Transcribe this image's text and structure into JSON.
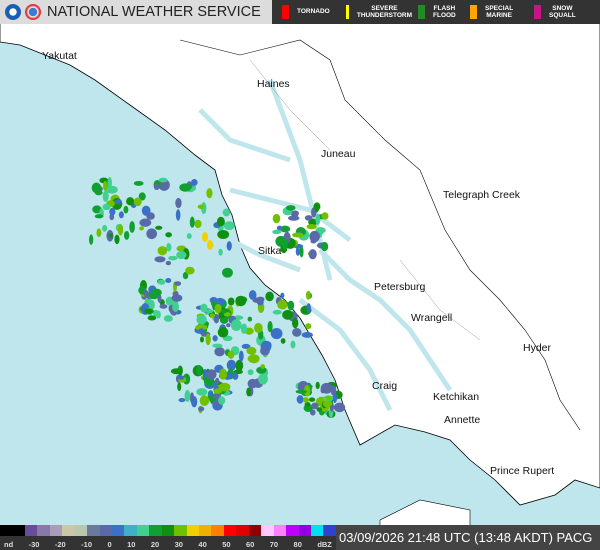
{
  "header": {
    "title": "NATIONAL WEATHER SERVICE",
    "logos": [
      "noaa-logo",
      "nws-logo"
    ]
  },
  "warnings": [
    {
      "label": "TORNADO",
      "color": "#ff0000"
    },
    {
      "label": "SEVERE\nTHUNDERSTORM",
      "color": "#ffff00"
    },
    {
      "label": "FLASH\nFLOOD",
      "color": "#228b22"
    },
    {
      "label": "SPECIAL\nMARINE",
      "color": "#ffa500"
    },
    {
      "label": "SNOW\nSQUALL",
      "color": "#c71585"
    }
  ],
  "cities": [
    {
      "name": "Yakutat"
    },
    {
      "name": "Haines"
    },
    {
      "name": "Juneau"
    },
    {
      "name": "Telegraph Creek"
    },
    {
      "name": "Sitka"
    },
    {
      "name": "Petersburg"
    },
    {
      "name": "Wrangell"
    },
    {
      "name": "Hyder"
    },
    {
      "name": "Craig"
    },
    {
      "name": "Ketchikan"
    },
    {
      "name": "Annette"
    },
    {
      "name": "Prince Rupert"
    }
  ],
  "legend": {
    "ticks": [
      "nd",
      "-30",
      "-20",
      "-10",
      "0",
      "10",
      "20",
      "30",
      "40",
      "50",
      "60",
      "70",
      "80",
      "dBZ"
    ],
    "colors": [
      "#000000",
      "#000000",
      "#6a4d9a",
      "#8a78a8",
      "#a89cb8",
      "#c8c8a8",
      "#b8c8b0",
      "#6a7a9a",
      "#5a6aa8",
      "#3a70c8",
      "#40b0c8",
      "#40d090",
      "#10a030",
      "#109010",
      "#70c000",
      "#f0d000",
      "#f0b000",
      "#ff8000",
      "#ff0000",
      "#e00000",
      "#900000",
      "#ffc8ff",
      "#ff80ff",
      "#c000ff",
      "#9000e0",
      "#00e0f0",
      "#3040d0"
    ]
  },
  "timestamp": "03/09/2026 21:48 UTC (13:48 AKDT) PACG"
}
